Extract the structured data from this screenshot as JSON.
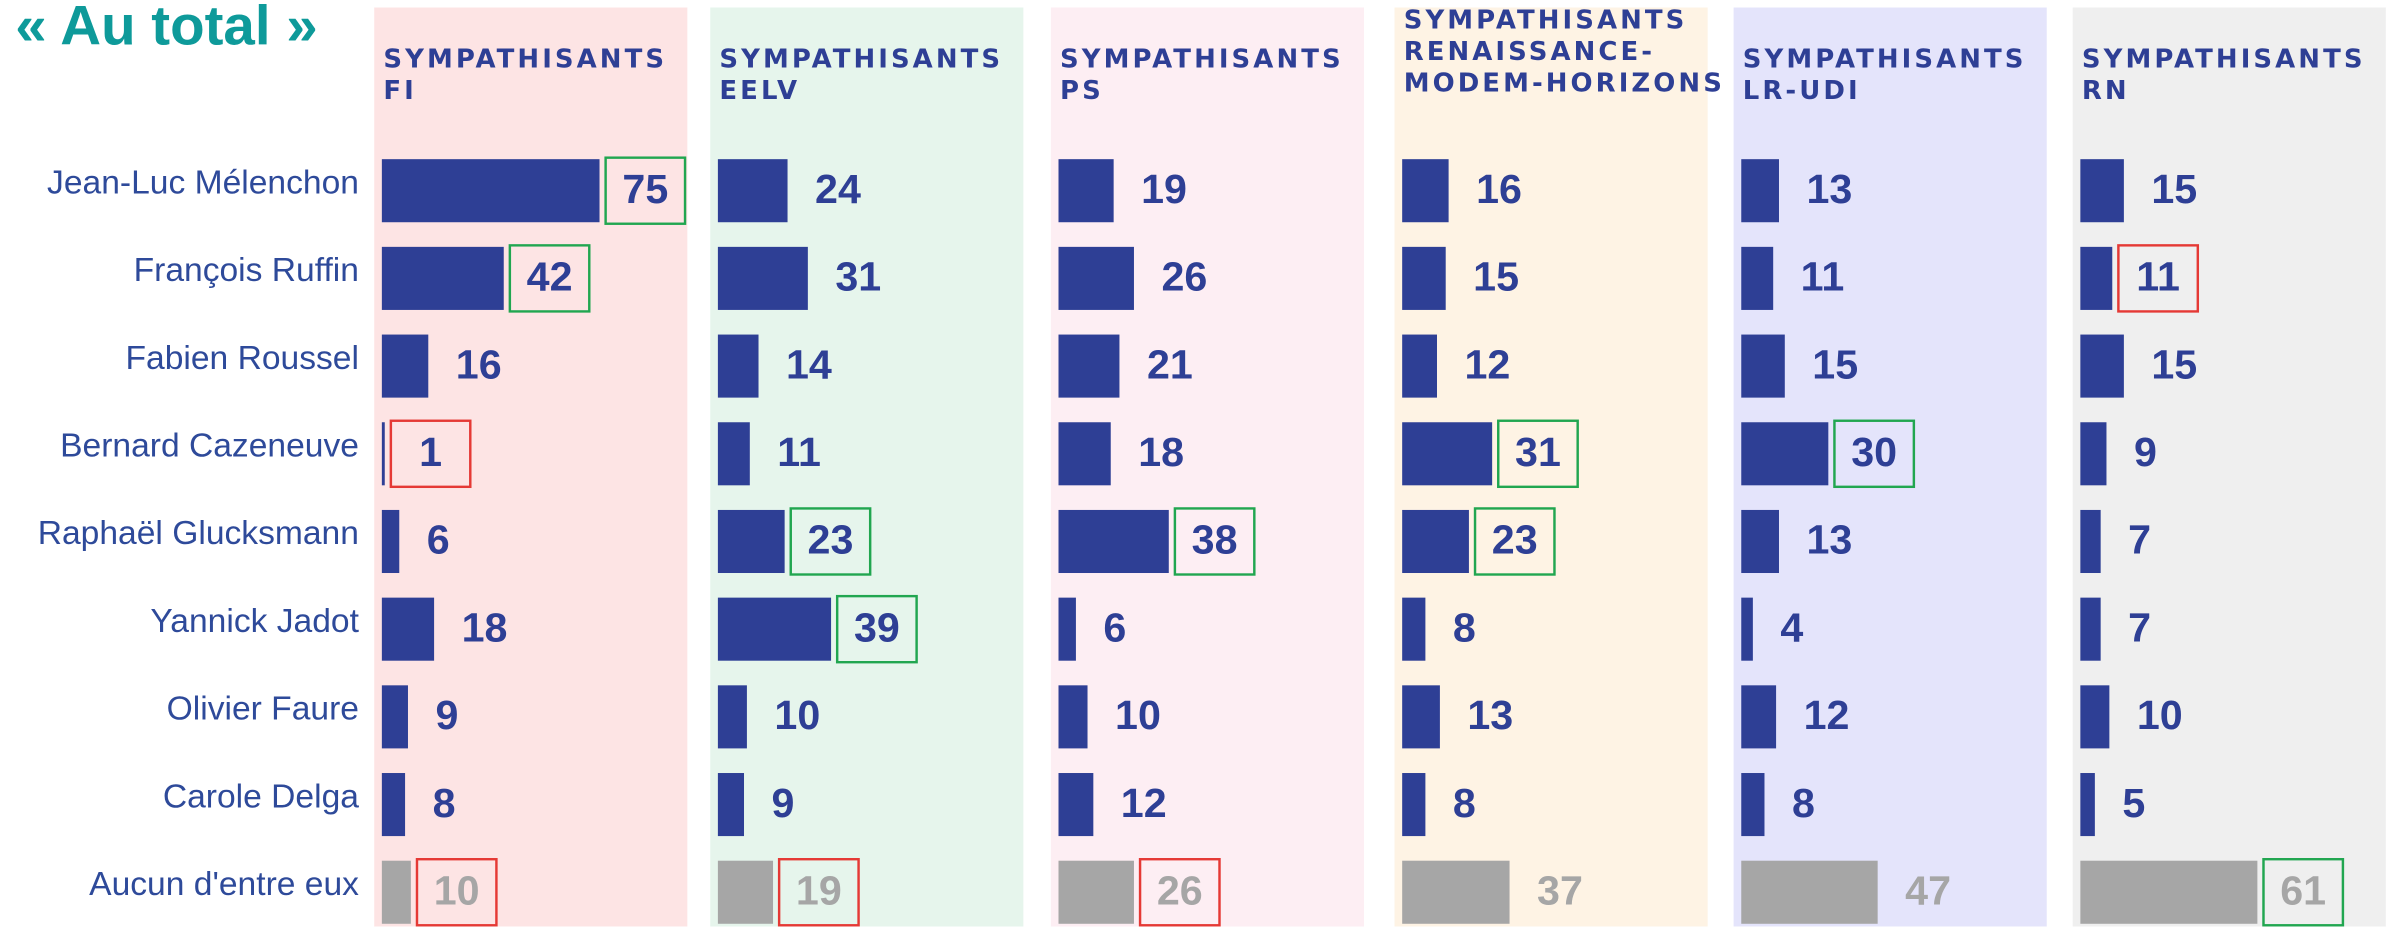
{
  "title": "« Au total »",
  "categories": [
    "Jean-Luc Mélenchon",
    "François Ruffin",
    "Fabien Roussel",
    "Bernard Cazeneuve",
    "Raphaël Glucksmann",
    "Yannick Jadot",
    "Olivier Faure",
    "Carole Delga",
    "Aucun d'entre eux"
  ],
  "chart_data": [
    {
      "type": "bar",
      "title": [
        "SYMPATHISANTS",
        "FI"
      ],
      "background": "#fde4e4",
      "values": [
        75,
        42,
        16,
        1,
        6,
        18,
        9,
        8,
        10
      ],
      "colors": [
        "#2e3f95",
        "#2e3f95",
        "#2e3f95",
        "#2e3f95",
        "#2e3f95",
        "#2e3f95",
        "#2e3f95",
        "#2e3f95",
        "#a6a6a6"
      ],
      "box_colors": [
        "#21a650",
        "#21a650",
        null,
        "#e53935",
        null,
        null,
        null,
        null,
        "#e53935"
      ]
    },
    {
      "type": "bar",
      "title": [
        "SYMPATHISANTS",
        "EELV"
      ],
      "background": "#e6f5ec",
      "values": [
        24,
        31,
        14,
        11,
        23,
        39,
        10,
        9,
        19
      ],
      "colors": [
        "#2e3f95",
        "#2e3f95",
        "#2e3f95",
        "#2e3f95",
        "#2e3f95",
        "#2e3f95",
        "#2e3f95",
        "#2e3f95",
        "#a6a6a6"
      ],
      "box_colors": [
        null,
        null,
        null,
        null,
        "#21a650",
        "#21a650",
        null,
        null,
        "#e53935"
      ]
    },
    {
      "type": "bar",
      "title": [
        "SYMPATHISANTS",
        "PS"
      ],
      "background": "#fdeef3",
      "values": [
        19,
        26,
        21,
        18,
        38,
        6,
        10,
        12,
        26
      ],
      "colors": [
        "#2e3f95",
        "#2e3f95",
        "#2e3f95",
        "#2e3f95",
        "#2e3f95",
        "#2e3f95",
        "#2e3f95",
        "#2e3f95",
        "#a6a6a6"
      ],
      "box_colors": [
        null,
        null,
        null,
        null,
        "#21a650",
        null,
        null,
        null,
        "#e53935"
      ]
    },
    {
      "type": "bar",
      "title": [
        "SYMPATHISANTS",
        "RENAISSANCE-",
        "MODEM-HORIZONS"
      ],
      "background": "#fef3e4",
      "values": [
        16,
        15,
        12,
        31,
        23,
        8,
        13,
        8,
        37
      ],
      "colors": [
        "#2e3f95",
        "#2e3f95",
        "#2e3f95",
        "#2e3f95",
        "#2e3f95",
        "#2e3f95",
        "#2e3f95",
        "#2e3f95",
        "#a6a6a6"
      ],
      "box_colors": [
        null,
        null,
        null,
        "#21a650",
        "#21a650",
        null,
        null,
        null,
        null
      ]
    },
    {
      "type": "bar",
      "title": [
        "SYMPATHISANTS",
        "LR-UDI"
      ],
      "background": "#e4e4fb",
      "values": [
        13,
        11,
        15,
        30,
        13,
        4,
        12,
        8,
        47
      ],
      "colors": [
        "#2e3f95",
        "#2e3f95",
        "#2e3f95",
        "#2e3f95",
        "#2e3f95",
        "#2e3f95",
        "#2e3f95",
        "#2e3f95",
        "#a6a6a6"
      ],
      "box_colors": [
        null,
        null,
        null,
        "#21a650",
        null,
        null,
        null,
        null,
        null
      ]
    },
    {
      "type": "bar",
      "title": [
        "SYMPATHISANTS",
        "RN"
      ],
      "background": "#efefef",
      "values": [
        15,
        11,
        15,
        9,
        7,
        7,
        10,
        5,
        61
      ],
      "colors": [
        "#2e3f95",
        "#2e3f95",
        "#2e3f95",
        "#2e3f95",
        "#2e3f95",
        "#2e3f95",
        "#2e3f95",
        "#2e3f95",
        "#a6a6a6"
      ],
      "box_colors": [
        null,
        "#e53935",
        null,
        null,
        null,
        null,
        null,
        null,
        "#21a650"
      ]
    }
  ]
}
